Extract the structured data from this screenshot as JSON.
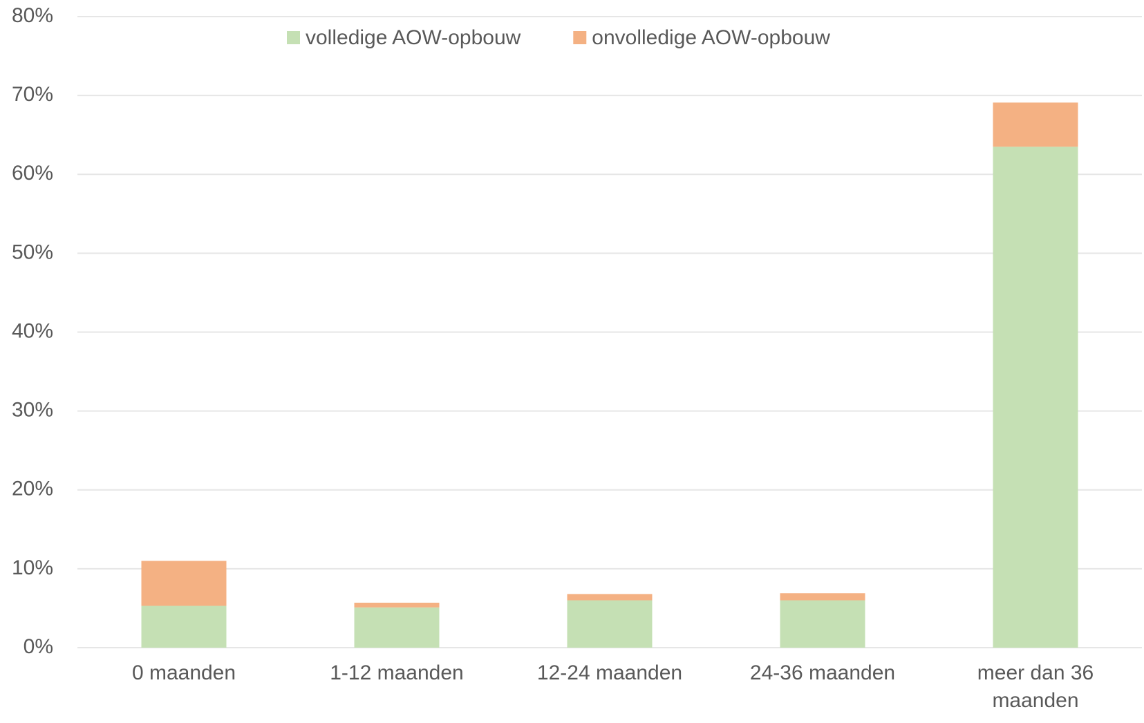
{
  "chart_data": {
    "type": "stacked_bar",
    "categories": [
      "0 maanden",
      "1-12 maanden",
      "12-24 maanden",
      "24-36 maanden",
      "meer dan 36 maanden"
    ],
    "series": [
      {
        "name": "volledige AOW-opbouw",
        "color": "#c5e0b4",
        "values": [
          5.3,
          5.1,
          6.0,
          6.0,
          63.5
        ]
      },
      {
        "name": "onvolledige AOW-opbouw",
        "color": "#f4b183",
        "values": [
          5.7,
          0.6,
          0.8,
          0.9,
          5.6
        ]
      }
    ],
    "ylim": [
      0,
      80
    ],
    "yticks": [
      {
        "value": 0,
        "label": "0%"
      },
      {
        "value": 10,
        "label": "10%"
      },
      {
        "value": 20,
        "label": "20%"
      },
      {
        "value": 30,
        "label": "30%"
      },
      {
        "value": 40,
        "label": "40%"
      },
      {
        "value": 50,
        "label": "50%"
      },
      {
        "value": 60,
        "label": "60%"
      },
      {
        "value": 70,
        "label": "70%"
      },
      {
        "value": 80,
        "label": "80%"
      }
    ],
    "grid": true,
    "legend": "top"
  }
}
